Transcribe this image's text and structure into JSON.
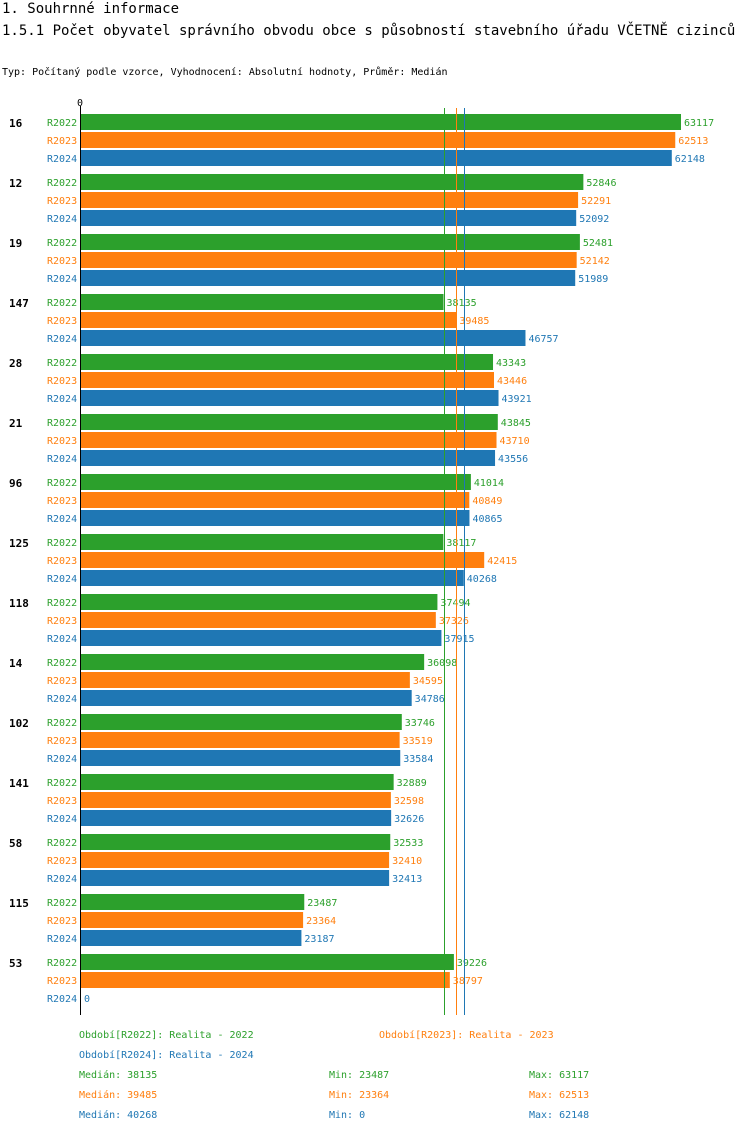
{
  "header": {
    "title": "1. Souhrnné informace",
    "subtitle": "1.5.1 Počet obyvatel správního obvodu obce s působností stavebního úřadu VČETNĚ cizinců",
    "info": "Typ: Počítaný podle vzorce, Vyhodnocení: Absolutní hodnoty, Průměr: Medián"
  },
  "colors": {
    "R2022": "#2ca02c",
    "R2023": "#ff7f0e",
    "R2024": "#1f77b4"
  },
  "chart_data": {
    "type": "bar",
    "orientation": "horizontal",
    "xlim": [
      0,
      63117
    ],
    "x_tick_label": "0",
    "series_names": [
      "R2022",
      "R2023",
      "R2024"
    ],
    "categories": [
      "16",
      "12",
      "19",
      "147",
      "28",
      "21",
      "96",
      "125",
      "118",
      "14",
      "102",
      "141",
      "58",
      "115",
      "53"
    ],
    "series": [
      {
        "name": "R2022",
        "values": [
          63117,
          52846,
          52481,
          38135,
          43343,
          43845,
          41014,
          38117,
          37494,
          36098,
          33746,
          32889,
          32533,
          23487,
          39226
        ]
      },
      {
        "name": "R2023",
        "values": [
          62513,
          52291,
          52142,
          39485,
          43446,
          43710,
          40849,
          42415,
          37326,
          34595,
          33519,
          32598,
          32410,
          23364,
          38797
        ]
      },
      {
        "name": "R2024",
        "values": [
          62148,
          52092,
          51989,
          46757,
          43921,
          43556,
          40865,
          40268,
          37915,
          34786,
          33584,
          32626,
          32413,
          23187,
          0
        ]
      }
    ],
    "medians": [
      {
        "name": "R2022",
        "value": 38135
      },
      {
        "name": "R2023",
        "value": 39485
      },
      {
        "name": "R2024",
        "value": 40268
      }
    ]
  },
  "legend": {
    "periods": [
      {
        "text": "Období[R2022]: Realita - 2022"
      },
      {
        "text": "Období[R2023]: Realita - 2023"
      },
      {
        "text": "Období[R2024]: Realita - 2024"
      }
    ],
    "stats": [
      {
        "median": "Medián: 38135",
        "min": "Min: 23487",
        "max": "Max: 63117"
      },
      {
        "median": "Medián: 39485",
        "min": "Min: 23364",
        "max": "Max: 62513"
      },
      {
        "median": "Medián: 40268",
        "min": "Min: 0",
        "max": "Max: 62148"
      }
    ]
  }
}
